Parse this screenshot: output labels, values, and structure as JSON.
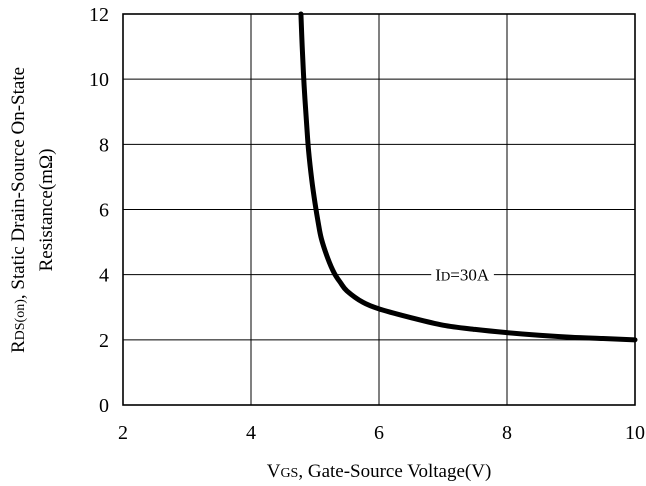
{
  "chart_data": {
    "type": "line",
    "title": "",
    "xlabel": {
      "prefix": "V",
      "subscript": "GS",
      "rest": ", Gate-Source Voltage(V)"
    },
    "ylabel": {
      "line1_prefix": "R",
      "line1_subscript": "DS(on)",
      "line1_rest": ", Static Drain-Source On-State",
      "line2": "Resistance(mΩ)"
    },
    "xlim": [
      2,
      10
    ],
    "ylim": [
      0,
      12
    ],
    "x_ticks": [
      "2",
      "4",
      "6",
      "8",
      "10"
    ],
    "y_ticks": [
      "0",
      "2",
      "4",
      "6",
      "8",
      "10",
      "12"
    ],
    "grid": true,
    "annotation": {
      "prefix": "I",
      "subscript": "D",
      "rest": "=30A",
      "x": 7.3,
      "y": 4
    },
    "series": [
      {
        "x": [
          4.78,
          4.8,
          4.83,
          4.87,
          4.9,
          4.95,
          5.0,
          5.05,
          5.1,
          5.2,
          5.3,
          5.4,
          5.5,
          5.75,
          6.0,
          6.5,
          7.0,
          7.5,
          8.0,
          8.5,
          9.0,
          9.5,
          10.0
        ],
        "y": [
          12,
          11.0,
          9.8,
          8.6,
          7.8,
          6.9,
          6.2,
          5.6,
          5.1,
          4.5,
          4.05,
          3.75,
          3.5,
          3.15,
          2.95,
          2.68,
          2.45,
          2.32,
          2.22,
          2.14,
          2.08,
          2.04,
          2.0
        ]
      }
    ]
  }
}
